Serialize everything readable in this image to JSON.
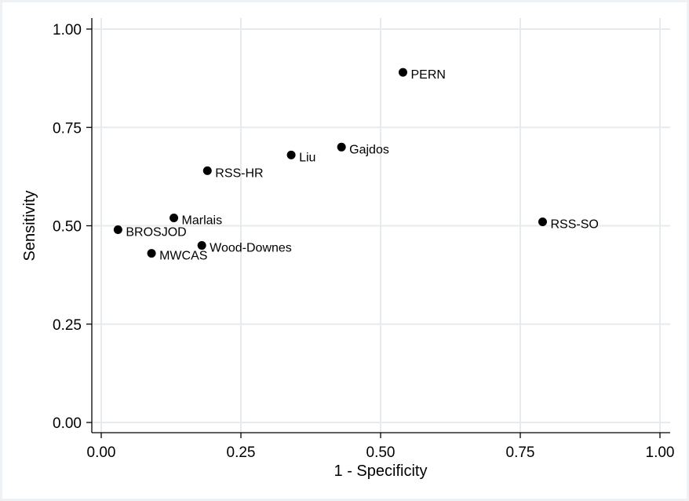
{
  "chart_data": {
    "type": "scatter",
    "title": "",
    "xlabel": "1 - Specificity",
    "ylabel": "Sensitivity",
    "xlim": [
      0,
      1
    ],
    "ylim": [
      0,
      1
    ],
    "xticks": [
      "0.00",
      "0.25",
      "0.50",
      "0.75",
      "1.00"
    ],
    "yticks": [
      "0.00",
      "0.25",
      "0.50",
      "0.75",
      "1.00"
    ],
    "grid": true,
    "legend": "none",
    "marker_color": "#000000",
    "points": [
      {
        "label": "PERN",
        "x": 0.54,
        "y": 0.89
      },
      {
        "label": "Gajdos",
        "x": 0.43,
        "y": 0.7
      },
      {
        "label": "Liu",
        "x": 0.34,
        "y": 0.68
      },
      {
        "label": "RSS-HR",
        "x": 0.19,
        "y": 0.64
      },
      {
        "label": "Marlais",
        "x": 0.13,
        "y": 0.52
      },
      {
        "label": "BROSJOD",
        "x": 0.03,
        "y": 0.49
      },
      {
        "label": "Wood-Downes",
        "x": 0.18,
        "y": 0.45
      },
      {
        "label": "MWCAS",
        "x": 0.09,
        "y": 0.43
      },
      {
        "label": "RSS-SO",
        "x": 0.79,
        "y": 0.51
      }
    ]
  }
}
